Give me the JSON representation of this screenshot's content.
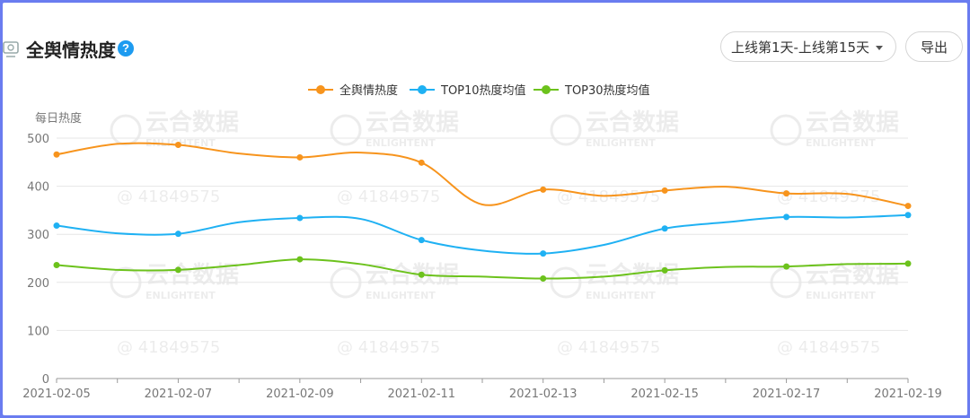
{
  "header": {
    "title": "全舆情热度",
    "help_icon": "question-circle-icon",
    "help_glyph": "?",
    "range_label": "上线第1天-上线第15天",
    "export_label": "导出"
  },
  "watermark": {
    "brand_cn": "云合数据",
    "brand_en": "ENLIGHTENT",
    "id_text": "@  41849575"
  },
  "colors": {
    "series": [
      "#f7941d",
      "#1fb1f3",
      "#6cc21c"
    ],
    "grid": "#e6e6e6",
    "axis": "#9a9a9a",
    "tick_text": "#777777"
  },
  "chart_data": {
    "type": "line",
    "ylabel": "每日热度",
    "ylim": [
      0,
      500
    ],
    "yticks": [
      0,
      100,
      200,
      300,
      400,
      500
    ],
    "x": [
      "2021-02-05",
      "2021-02-06",
      "2021-02-07",
      "2021-02-08",
      "2021-02-09",
      "2021-02-10",
      "2021-02-11",
      "2021-02-12",
      "2021-02-13",
      "2021-02-14",
      "2021-02-15",
      "2021-02-16",
      "2021-02-17",
      "2021-02-18",
      "2021-02-19"
    ],
    "xtick_labels": [
      "2021-02-05",
      "2021-02-07",
      "2021-02-09",
      "2021-02-11",
      "2021-02-13",
      "2021-02-15",
      "2021-02-17",
      "2021-02-19"
    ],
    "legend_position": "top-center",
    "grid": true,
    "series": [
      {
        "name": "全舆情热度",
        "values": [
          466,
          488,
          486,
          468,
          460,
          470,
          449,
          362,
          393,
          380,
          391,
          399,
          385,
          384,
          359
        ]
      },
      {
        "name": "TOP10热度均值",
        "values": [
          318,
          302,
          301,
          325,
          334,
          332,
          288,
          266,
          260,
          278,
          312,
          325,
          336,
          335,
          340
        ]
      },
      {
        "name": "TOP30热度均值",
        "values": [
          236,
          226,
          226,
          236,
          248,
          238,
          216,
          212,
          208,
          212,
          225,
          232,
          233,
          238,
          239
        ]
      }
    ]
  }
}
